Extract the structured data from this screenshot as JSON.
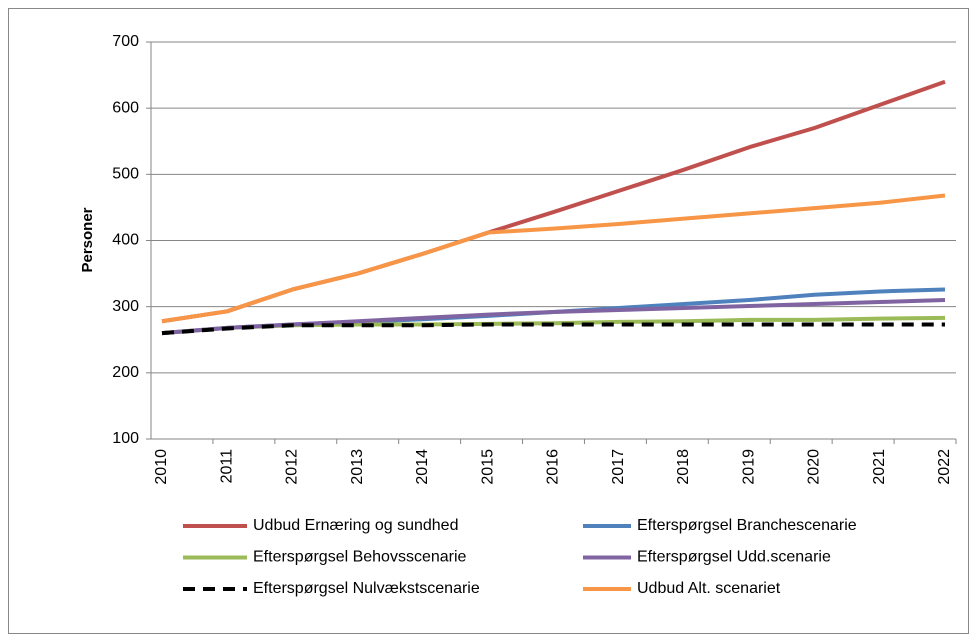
{
  "chart_data": {
    "type": "line",
    "y_label": "Personer",
    "categories": [
      "2010",
      "2011",
      "2012",
      "2013",
      "2014",
      "2015",
      "2016",
      "2017",
      "2018",
      "2019",
      "2020",
      "2021",
      "2022"
    ],
    "series": [
      {
        "name": "Udbud Ernæring og sundhed",
        "color": "#c0504d",
        "values": [
          278,
          293,
          326,
          350,
          380,
          412,
          443,
          475,
          507,
          541,
          570,
          605,
          640
        ]
      },
      {
        "name": "Efterspørgsel Branchescenarie",
        "color": "#4f81bd",
        "values": [
          260,
          268,
          273,
          277,
          281,
          286,
          292,
          298,
          304,
          310,
          318,
          323,
          326
        ]
      },
      {
        "name": "Efterspørgsel Behovsscenarie",
        "color": "#9bbb59",
        "values": [
          260,
          268,
          272,
          273,
          273,
          274,
          275,
          277,
          278,
          280,
          280,
          282,
          283
        ]
      },
      {
        "name": "Efterspørgsel Udd.scenarie",
        "color": "#8064a2",
        "values": [
          260,
          268,
          273,
          278,
          283,
          288,
          292,
          295,
          298,
          301,
          304,
          307,
          310
        ]
      },
      {
        "name": "Efterspørgsel Nulvækstscenarie",
        "color": "#000000",
        "line_style": "dashed",
        "values": [
          260,
          267,
          272,
          272,
          272,
          273,
          273,
          273,
          273,
          273,
          273,
          273,
          273
        ]
      },
      {
        "name": "Udbud Alt. scenariet",
        "color": "#f79646",
        "values": [
          278,
          293,
          326,
          350,
          380,
          412,
          418,
          425,
          433,
          441,
          449,
          457,
          468
        ]
      }
    ],
    "ylim": [
      100,
      700
    ],
    "yticks": [
      100,
      200,
      300,
      400,
      500,
      600,
      700
    ],
    "grid": true
  }
}
